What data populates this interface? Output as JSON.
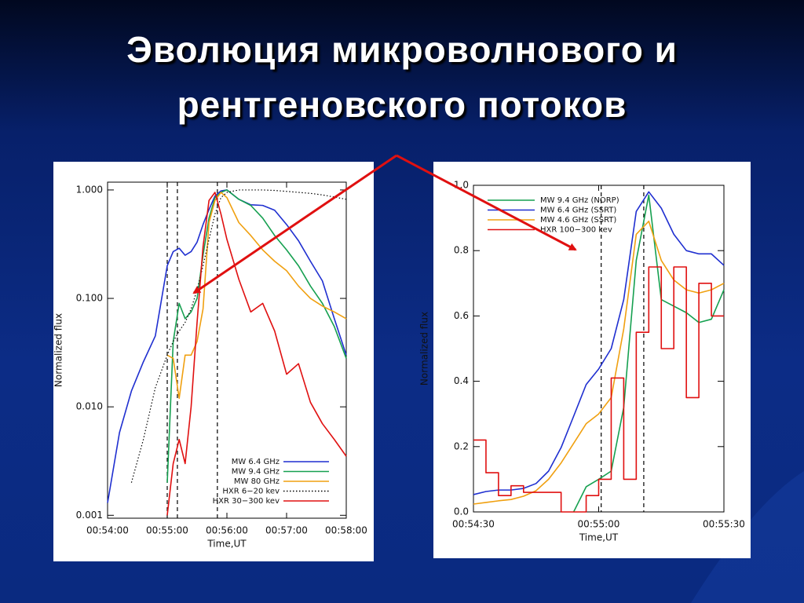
{
  "slide": {
    "title_lines": [
      "Эволюция микроволнового и",
      "рентгеновского потоков"
    ]
  },
  "chart_data": [
    {
      "type": "line",
      "log_y": true,
      "legend": "lower right",
      "grid": false,
      "xlabel": "Time,UT",
      "ylabel": "Normalized flux",
      "xlim": [
        54,
        58
      ],
      "xticks": [
        {
          "value": 54,
          "label": "00:54:00"
        },
        {
          "value": 55,
          "label": "00:55:00"
        },
        {
          "value": 56,
          "label": "00:56:00"
        },
        {
          "value": 57,
          "label": "00:57:00"
        },
        {
          "value": 58,
          "label": "00:58:00"
        }
      ],
      "ylim": [
        0.00094,
        1.18
      ],
      "yticks": [
        {
          "value": 0.001,
          "label": "0.001"
        },
        {
          "value": 0.01,
          "label": "0.010"
        },
        {
          "value": 0.1,
          "label": "0.100"
        },
        {
          "value": 1,
          "label": "1.000"
        }
      ],
      "vlines": [
        55.0,
        55.17,
        55.84
      ],
      "x": [
        54.0,
        54.2,
        54.4,
        54.6,
        54.8,
        55.0,
        55.1,
        55.2,
        55.3,
        55.4,
        55.5,
        55.6,
        55.7,
        55.8,
        55.9,
        56.0,
        56.2,
        56.4,
        56.6,
        56.8,
        57.0,
        57.2,
        57.4,
        57.6,
        57.8,
        58.0
      ],
      "series": [
        {
          "name": "MW 6.4 GHz",
          "color": "#1f2fd0",
          "values": [
            0.0013,
            0.0058,
            0.014,
            0.026,
            0.045,
            0.2,
            0.27,
            0.29,
            0.25,
            0.27,
            0.33,
            0.48,
            0.66,
            0.88,
            0.98,
            1.0,
            0.82,
            0.73,
            0.72,
            0.65,
            0.48,
            0.34,
            0.22,
            0.145,
            0.065,
            0.03
          ]
        },
        {
          "name": "MW 9.4 GHz",
          "color": "#16a050",
          "values": [
            null,
            null,
            null,
            null,
            null,
            0.002,
            0.04,
            0.09,
            0.065,
            0.075,
            0.1,
            0.25,
            0.55,
            0.85,
            0.95,
            1.0,
            0.82,
            0.72,
            0.55,
            0.38,
            0.28,
            0.2,
            0.13,
            0.09,
            0.055,
            0.028
          ]
        },
        {
          "name": "MW 80 GHz",
          "color": "#f0a010",
          "values": [
            null,
            null,
            null,
            null,
            null,
            0.03,
            0.028,
            0.012,
            0.03,
            0.03,
            0.04,
            0.08,
            0.5,
            0.8,
            0.95,
            0.85,
            0.5,
            0.38,
            0.28,
            0.22,
            0.18,
            0.13,
            0.1,
            0.085,
            0.075,
            0.065
          ]
        },
        {
          "name": "HXR 6−20 kev",
          "color": "#000000",
          "dash": "dotted",
          "values": [
            null,
            null,
            0.002,
            0.005,
            0.015,
            0.03,
            0.04,
            0.05,
            0.06,
            0.08,
            0.12,
            0.2,
            0.35,
            0.6,
            0.85,
            0.95,
            1.0,
            1.0,
            1.0,
            0.99,
            0.97,
            0.95,
            0.93,
            0.9,
            0.86,
            0.82
          ]
        },
        {
          "name": "HXR 30−300 kev",
          "color": "#e01010",
          "values": [
            null,
            null,
            null,
            null,
            null,
            0.001,
            0.003,
            0.005,
            0.003,
            0.01,
            0.06,
            0.3,
            0.8,
            0.95,
            0.6,
            0.35,
            0.15,
            0.075,
            0.09,
            0.05,
            0.02,
            0.025,
            0.011,
            0.007,
            0.005,
            0.0035
          ]
        }
      ]
    },
    {
      "type": "line",
      "log_y": false,
      "legend": "upper left",
      "grid": false,
      "xlabel": "Time,UT",
      "ylabel": "Normalized flux",
      "xlim": [
        54.5,
        55.5
      ],
      "xticks": [
        {
          "value": 54.5,
          "label": "00:54:30"
        },
        {
          "value": 55,
          "label": "00:55:00"
        },
        {
          "value": 55.5,
          "label": "00:55:30"
        }
      ],
      "ylim": [
        0,
        1
      ],
      "yticks": [
        {
          "value": 0,
          "label": "0.0"
        },
        0.2,
        0.4,
        0.6,
        0.8,
        {
          "value": 1,
          "label": "1.0"
        }
      ],
      "vlines": [
        55.01,
        55.18
      ],
      "x": [
        54.5,
        54.55,
        54.6,
        54.65,
        54.7,
        54.75,
        54.8,
        54.85,
        54.9,
        54.95,
        55.0,
        55.05,
        55.1,
        55.15,
        55.2,
        55.25,
        55.3,
        55.35,
        55.4,
        55.45,
        55.5
      ],
      "series": [
        {
          "name": "MW 9.4 GHz (NORP)",
          "color": "#16a050",
          "values": [
            null,
            null,
            null,
            null,
            null,
            null,
            null,
            null,
            0.0,
            0.077,
            0.1,
            0.125,
            0.32,
            0.77,
            0.97,
            0.65,
            0.63,
            0.61,
            0.58,
            0.59,
            0.68
          ]
        },
        {
          "name": "MW 6.4 GHz (SSRT)",
          "color": "#1f2fd0",
          "values": [
            0.053,
            0.0625,
            0.067,
            0.067,
            0.072,
            0.087,
            0.125,
            0.197,
            0.293,
            0.39,
            0.4375,
            0.5,
            0.65,
            0.92,
            0.98,
            0.93,
            0.85,
            0.8,
            0.79,
            0.79,
            0.755
          ]
        },
        {
          "name": "MW 4.6 GHz (SSRT)",
          "color": "#f0a010",
          "values": [
            0.024,
            0.029,
            0.034,
            0.038,
            0.048,
            0.065,
            0.1,
            0.15,
            0.21,
            0.27,
            0.3,
            0.35,
            0.56,
            0.85,
            0.89,
            0.77,
            0.71,
            0.68,
            0.67,
            0.68,
            0.7
          ]
        },
        {
          "name": "HXR 100−300 kev",
          "color": "#e01010",
          "step": true,
          "values": [
            0.22,
            0.12,
            0.05,
            0.08,
            0.06,
            0.06,
            0.06,
            0.0,
            0.0,
            0.05,
            0.1,
            0.41,
            0.1,
            0.55,
            0.75,
            0.5,
            0.75,
            0.35,
            0.7,
            0.6,
            0.6
          ]
        }
      ]
    }
  ]
}
